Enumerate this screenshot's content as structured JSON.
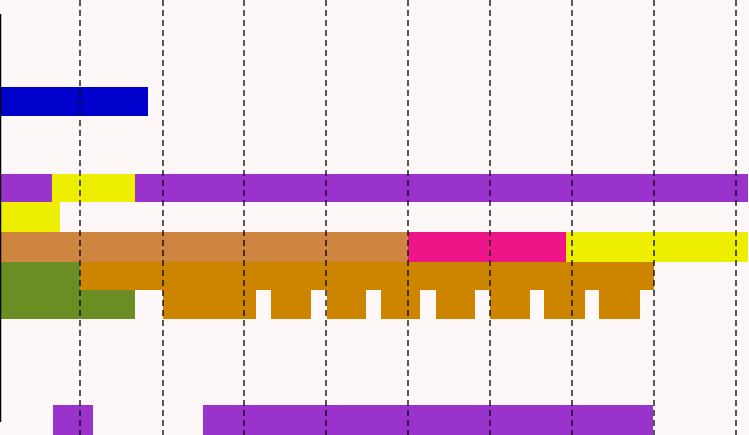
{
  "chart_data": {
    "type": "bar",
    "title": "",
    "xlabel": "",
    "ylabel": "",
    "grid": "vertical dashed",
    "x_range": [
      0,
      749
    ],
    "gridlines_x": [
      80,
      163,
      244,
      326,
      408,
      490,
      572,
      654,
      736
    ],
    "colors": {
      "background": "#fdf8f7",
      "gridline": "#000000",
      "axis": "#000000"
    },
    "bars": [
      {
        "lane": "row-1",
        "start": 0,
        "end": 148,
        "color": "#0000cc"
      },
      {
        "lane": "row-2",
        "start": 0,
        "end": 52,
        "color": "#9933cc"
      },
      {
        "lane": "row-2",
        "start": 52,
        "end": 135,
        "color": "#eeee00"
      },
      {
        "lane": "row-2",
        "start": 135,
        "end": 748,
        "color": "#9933cc"
      },
      {
        "lane": "row-3",
        "start": 0,
        "end": 60,
        "color": "#eeee00"
      },
      {
        "lane": "row-4",
        "start": 0,
        "end": 408,
        "color": "#cd853f"
      },
      {
        "lane": "row-4",
        "start": 408,
        "end": 566,
        "color": "#ee1589"
      },
      {
        "lane": "row-4",
        "start": 566,
        "end": 748,
        "color": "#eeee00"
      },
      {
        "lane": "row-5",
        "start": 0,
        "end": 80,
        "color": "#6b8e23"
      },
      {
        "lane": "row-5",
        "start": 80,
        "end": 654,
        "color": "#cd8500"
      },
      {
        "lane": "row-6",
        "start": 0,
        "end": 135,
        "color": "#6b8e23"
      },
      {
        "lane": "row-6",
        "start": 163,
        "end": 256,
        "color": "#cd8500"
      },
      {
        "lane": "row-6",
        "start": 271,
        "end": 311,
        "color": "#cd8500"
      },
      {
        "lane": "row-6",
        "start": 327,
        "end": 366,
        "color": "#cd8500"
      },
      {
        "lane": "row-6",
        "start": 381,
        "end": 420,
        "color": "#cd8500"
      },
      {
        "lane": "row-6",
        "start": 436,
        "end": 475,
        "color": "#cd8500"
      },
      {
        "lane": "row-6",
        "start": 490,
        "end": 530,
        "color": "#cd8500"
      },
      {
        "lane": "row-6",
        "start": 544,
        "end": 585,
        "color": "#cd8500"
      },
      {
        "lane": "row-6",
        "start": 599,
        "end": 640,
        "color": "#cd8500"
      },
      {
        "lane": "row-7",
        "start": 53,
        "end": 93,
        "color": "#9933cc"
      },
      {
        "lane": "row-7",
        "start": 203,
        "end": 653,
        "color": "#9933cc"
      }
    ]
  }
}
